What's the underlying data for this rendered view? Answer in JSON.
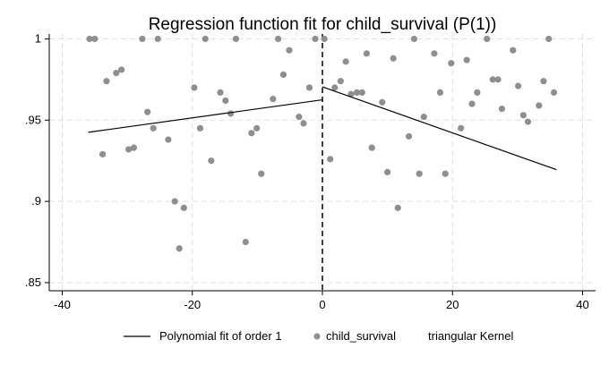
{
  "chart_data": {
    "type": "scatter",
    "title": "Regression function fit for child_survival (P(1))",
    "xlabel": "",
    "ylabel": "",
    "xlim": [
      -42,
      42
    ],
    "ylim": [
      0.845,
      1.003
    ],
    "x_ticks": [
      {
        "value": -40,
        "label": "-40"
      },
      {
        "value": -20,
        "label": "-20"
      },
      {
        "value": 0,
        "label": "0"
      },
      {
        "value": 20,
        "label": "20"
      },
      {
        "value": 40,
        "label": "40"
      }
    ],
    "y_ticks": [
      {
        "value": 0.85,
        "label": ".85"
      },
      {
        "value": 0.9,
        "label": ".9"
      },
      {
        "value": 0.95,
        "label": ".95"
      },
      {
        "value": 1.0,
        "label": "1"
      }
    ],
    "grid": true,
    "cutoff": 0,
    "colors": {
      "points": "#8f8f8f",
      "fit_line": "#000000",
      "grid": "#e0e0e0",
      "cutoff": "#000000"
    },
    "series": [
      {
        "name": "child_survival",
        "type": "scatter",
        "points": [
          [
            -35.8,
            1.0
          ],
          [
            -35.0,
            1.0
          ],
          [
            -33.2,
            0.974
          ],
          [
            -31.7,
            0.979
          ],
          [
            -30.9,
            0.981
          ],
          [
            -29.8,
            0.932
          ],
          [
            -29.0,
            0.933
          ],
          [
            -27.7,
            1.0
          ],
          [
            -26.9,
            0.955
          ],
          [
            -26.0,
            0.945
          ],
          [
            -25.3,
            1.0
          ],
          [
            -23.7,
            0.938
          ],
          [
            -22.7,
            0.9
          ],
          [
            -22.0,
            0.871
          ],
          [
            -21.3,
            0.896
          ],
          [
            -19.7,
            0.97
          ],
          [
            -18.8,
            0.945
          ],
          [
            -18.0,
            1.0
          ],
          [
            -17.1,
            0.925
          ],
          [
            -15.7,
            0.967
          ],
          [
            -14.9,
            0.962
          ],
          [
            -14.1,
            0.954
          ],
          [
            -13.3,
            1.0
          ],
          [
            -11.8,
            0.875
          ],
          [
            -10.9,
            0.942
          ],
          [
            -10.1,
            0.945
          ],
          [
            -9.4,
            0.917
          ],
          [
            -7.6,
            0.963
          ],
          [
            -6.8,
            1.0
          ],
          [
            -6.0,
            0.978
          ],
          [
            -5.1,
            0.993
          ],
          [
            -3.6,
            0.952
          ],
          [
            -2.9,
            0.948
          ],
          [
            -2.0,
            0.97
          ],
          [
            -1.1,
            1.0
          ],
          [
            -33.8,
            0.929
          ],
          [
            0.3,
            1.0
          ],
          [
            1.2,
            0.926
          ],
          [
            1.9,
            0.97
          ],
          [
            2.8,
            0.974
          ],
          [
            3.6,
            0.986
          ],
          [
            4.4,
            0.966
          ],
          [
            5.3,
            0.967
          ],
          [
            6.1,
            0.967
          ],
          [
            6.8,
            0.991
          ],
          [
            7.6,
            0.933
          ],
          [
            9.2,
            0.961
          ],
          [
            10.0,
            0.918
          ],
          [
            10.9,
            0.988
          ],
          [
            11.6,
            0.896
          ],
          [
            13.3,
            0.94
          ],
          [
            14.1,
            1.0
          ],
          [
            14.9,
            0.917
          ],
          [
            15.6,
            0.952
          ],
          [
            17.2,
            0.991
          ],
          [
            18.1,
            0.967
          ],
          [
            18.9,
            0.917
          ],
          [
            19.8,
            0.985
          ],
          [
            21.3,
            0.945
          ],
          [
            22.2,
            0.987
          ],
          [
            23.0,
            0.96
          ],
          [
            23.8,
            0.967
          ],
          [
            25.3,
            1.0
          ],
          [
            26.2,
            0.975
          ],
          [
            27.0,
            0.975
          ],
          [
            27.6,
            0.957
          ],
          [
            29.3,
            0.993
          ],
          [
            30.1,
            0.971
          ],
          [
            30.9,
            0.953
          ],
          [
            31.6,
            0.949
          ],
          [
            33.3,
            0.959
          ],
          [
            34.0,
            0.974
          ],
          [
            34.8,
            1.0
          ],
          [
            35.6,
            0.967
          ]
        ]
      },
      {
        "name": "Polynomial fit of order 1",
        "type": "line",
        "segments": [
          {
            "x": [
              -36,
              0
            ],
            "y": [
              0.9425,
              0.9625
            ]
          },
          {
            "x": [
              0,
              36
            ],
            "y": [
              0.9705,
              0.9195
            ]
          }
        ]
      }
    ],
    "legend": {
      "position": "bottom",
      "items": [
        {
          "label": "Polynomial fit of order 1",
          "symbol": "line"
        },
        {
          "label": "child_survival",
          "symbol": "dot"
        },
        {
          "label": "triangular Kernel",
          "symbol": "none"
        }
      ]
    }
  }
}
